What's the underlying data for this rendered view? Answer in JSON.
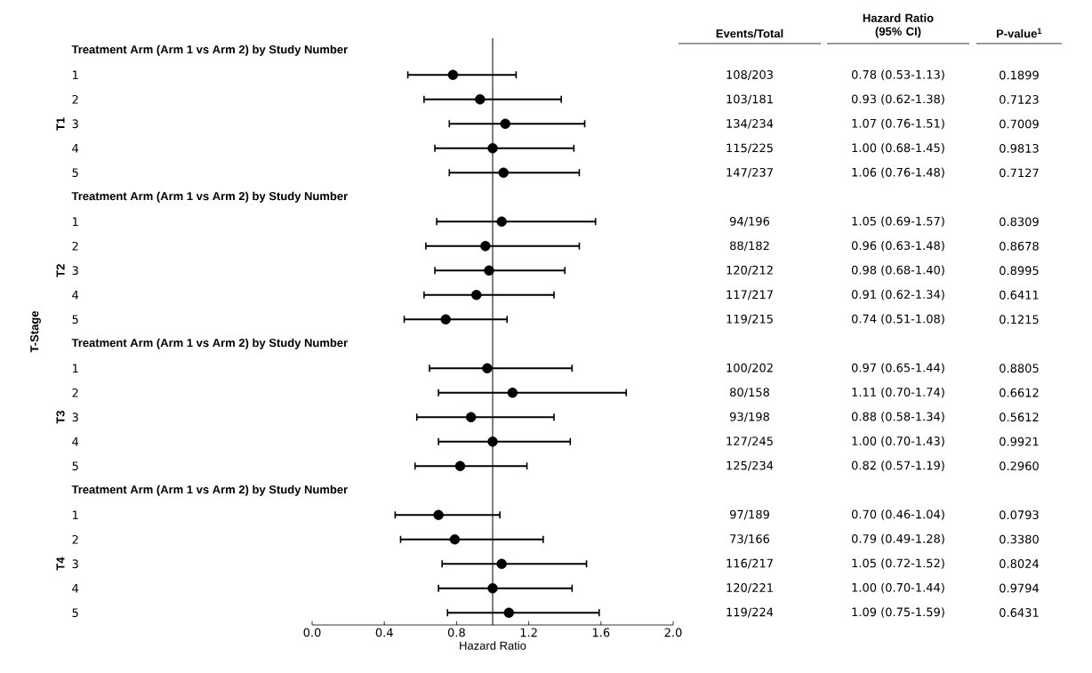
{
  "chart_data": [
    {
      "type": "scatter",
      "orientation": "horizontal",
      "xlabel": "Hazard Ratio",
      "ylabel": "T-Stage",
      "color": "#000000",
      "categories": [
        "Treatment Arm (Arm 1 vs Arm 2) by Study Number",
        "1",
        "2",
        "3",
        "4",
        "5",
        "Treatment Arm (Arm 1 vs Arm 2) by Study Number",
        "1",
        "2",
        "3",
        "4",
        "5",
        "Treatment Arm (Arm 1 vs Arm 2) by Study Number",
        "1",
        "2",
        "3",
        "4",
        "5",
        "Treatment Arm (Arm 1 vs Arm 2) by Study Number",
        "1",
        "2",
        "3",
        "4",
        "5"
      ],
      "values": [
        null,
        0.78,
        0.93,
        1.07,
        1.0,
        1.06,
        null,
        1.05,
        0.96,
        0.98,
        0.91,
        0.74,
        null,
        0.97,
        1.11,
        0.88,
        1.0,
        0.82,
        null,
        0.7,
        0.79,
        1.05,
        1.0,
        1.09
      ],
      "errors": [
        null,
        [
          0.53,
          1.13
        ],
        [
          0.62,
          1.38
        ],
        [
          0.76,
          1.51
        ],
        [
          0.68,
          1.45
        ],
        [
          0.76,
          1.48
        ],
        null,
        [
          0.69,
          1.57
        ],
        [
          0.63,
          1.48
        ],
        [
          0.68,
          1.4
        ],
        [
          0.62,
          1.34
        ],
        [
          0.51,
          1.08
        ],
        null,
        [
          0.65,
          1.44
        ],
        [
          0.7,
          1.74
        ],
        [
          0.58,
          1.34
        ],
        [
          0.7,
          1.43
        ],
        [
          0.57,
          1.19
        ],
        null,
        [
          0.46,
          1.04
        ],
        [
          0.49,
          1.28
        ],
        [
          0.72,
          1.52
        ],
        [
          0.7,
          1.44
        ],
        [
          0.75,
          1.59
        ]
      ],
      "xlim": [
        0,
        2
      ],
      "xticks": [
        {
          "value": 0,
          "label": "0.0"
        },
        0.4,
        0.8,
        1.2,
        1.6,
        {
          "value": 2,
          "label": "2.0"
        }
      ],
      "ref_lines": [
        {
          "axis": "x",
          "value": 1
        }
      ],
      "annotations": [
        "T1",
        "T2",
        "T3",
        "T4"
      ]
    },
    {
      "type": "other",
      "title": "Events/Total",
      "annotations": [
        "108/203",
        "103/181",
        "134/234",
        "115/225",
        "147/237",
        "94/196",
        "88/182",
        "120/212",
        "117/217",
        "119/215",
        "100/202",
        "80/158",
        "93/198",
        "127/245",
        "125/234",
        "97/189",
        "73/166",
        "116/217",
        "120/221",
        "119/224"
      ]
    },
    {
      "type": "other",
      "title": "Hazard Ratio (95% CI)",
      "annotations": [
        "0.78 (0.53-1.13)",
        "0.93 (0.62-1.38)",
        "1.07 (0.76-1.51)",
        "1.00 (0.68-1.45)",
        "1.06 (0.76-1.48)",
        "1.05 (0.69-1.57)",
        "0.96 (0.63-1.48)",
        "0.98 (0.68-1.40)",
        "0.91 (0.62-1.34)",
        "0.74 (0.51-1.08)",
        "0.97 (0.65-1.44)",
        "1.11 (0.70-1.74)",
        "0.88 (0.58-1.34)",
        "1.00 (0.70-1.43)",
        "0.82 (0.57-1.19)",
        "0.70 (0.46-1.04)",
        "0.79 (0.49-1.28)",
        "1.05 (0.72-1.52)",
        "1.00 (0.70-1.44)",
        "1.09 (0.75-1.59)"
      ]
    },
    {
      "type": "other",
      "title": "P-value$^{1}$",
      "annotations": [
        "0.1899",
        "0.7123",
        "0.7009",
        "0.9813",
        "0.7127",
        "0.8309",
        "0.8678",
        "0.8995",
        "0.6411",
        "0.1215",
        "0.8805",
        "0.6612",
        "0.5612",
        "0.9921",
        "0.2960",
        "0.0793",
        "0.3380",
        "0.8024",
        "0.9794",
        "0.6431"
      ]
    }
  ]
}
